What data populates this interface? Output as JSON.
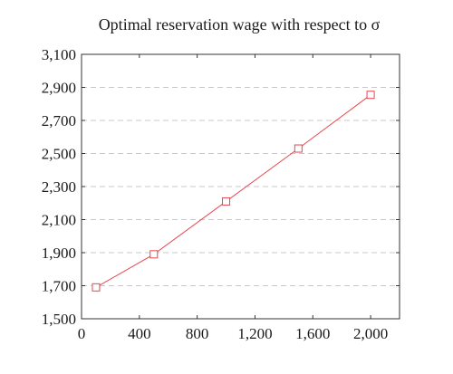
{
  "chart_data": {
    "type": "line",
    "title": "Optimal reservation wage with respect to σ",
    "xlabel": "",
    "ylabel": "",
    "xlim": [
      0,
      2200
    ],
    "ylim": [
      1500,
      3100
    ],
    "x_ticks": [
      0,
      400,
      800,
      1200,
      1600,
      2000
    ],
    "x_tick_labels": [
      "0",
      "400",
      "800",
      "1,200",
      "1,600",
      "2,000"
    ],
    "y_ticks": [
      1500,
      1700,
      1900,
      2100,
      2300,
      2500,
      2700,
      2900,
      3100
    ],
    "y_tick_labels": [
      "1,500",
      "1,700",
      "1,900",
      "2,100",
      "2,300",
      "2,500",
      "2,700",
      "2,900",
      "3,100"
    ],
    "grid": "horizontal-dashed",
    "series": [
      {
        "color": "#e8474f",
        "marker": "square",
        "x": [
          100,
          500,
          1000,
          1500,
          2000
        ],
        "y": [
          1690,
          1890,
          2210,
          2530,
          2855
        ]
      }
    ]
  }
}
